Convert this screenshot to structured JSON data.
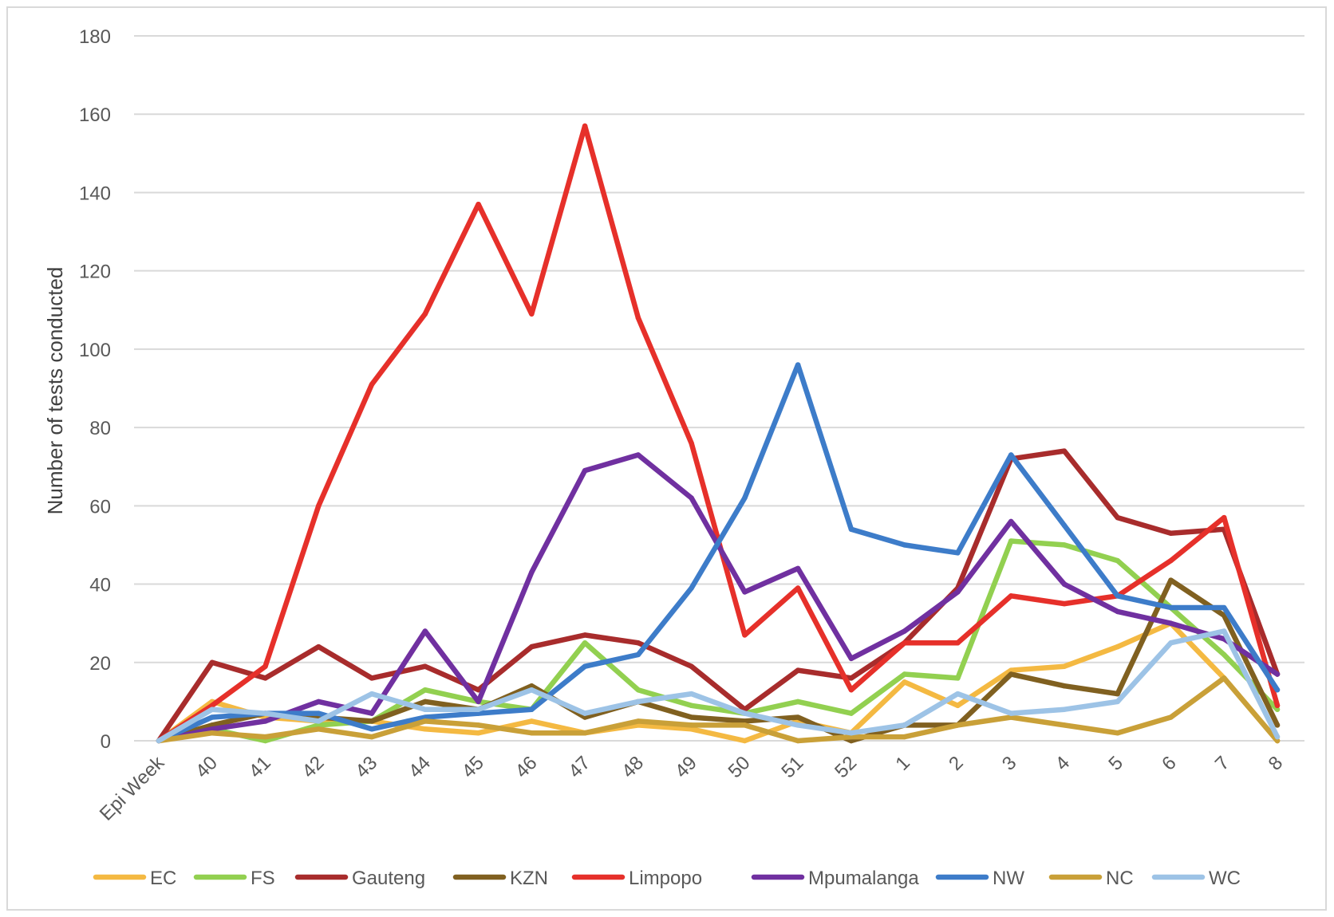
{
  "chart_data": {
    "type": "line",
    "title": "",
    "xlabel": "",
    "ylabel": "Number of tests conducted",
    "ylim": [
      0,
      180
    ],
    "yticks": [
      0,
      20,
      40,
      60,
      80,
      100,
      120,
      140,
      160,
      180
    ],
    "grid": true,
    "legend_position": "bottom",
    "categories": [
      "Epi Week",
      "40",
      "41",
      "42",
      "43",
      "44",
      "45",
      "46",
      "47",
      "48",
      "49",
      "50",
      "51",
      "52",
      "1",
      "2",
      "3",
      "4",
      "5",
      "6",
      "7",
      "8"
    ],
    "series": [
      {
        "name": "EC",
        "color": "#f4b942",
        "values": [
          0,
          10,
          6,
          5,
          5,
          3,
          2,
          5,
          2,
          4,
          3,
          0,
          5,
          2,
          15,
          9,
          18,
          19,
          24,
          30,
          16,
          0
        ]
      },
      {
        "name": "FS",
        "color": "#92d050",
        "values": [
          0,
          3,
          0,
          4,
          5,
          13,
          10,
          8,
          25,
          13,
          9,
          7,
          10,
          7,
          17,
          16,
          51,
          50,
          46,
          34,
          22,
          8
        ]
      },
      {
        "name": "Gauteng",
        "color": "#a82c2c",
        "values": [
          0,
          20,
          16,
          24,
          16,
          19,
          13,
          24,
          27,
          25,
          19,
          8,
          18,
          16,
          25,
          39,
          72,
          74,
          57,
          53,
          54,
          17
        ]
      },
      {
        "name": "KZN",
        "color": "#806020",
        "values": [
          0,
          4,
          7,
          6,
          5,
          10,
          8,
          14,
          6,
          10,
          6,
          5,
          6,
          0,
          4,
          4,
          17,
          14,
          12,
          41,
          32,
          4
        ]
      },
      {
        "name": "Limpopo",
        "color": "#e6302a",
        "values": [
          0,
          9,
          19,
          60,
          91,
          109,
          137,
          109,
          157,
          108,
          76,
          27,
          39,
          13,
          25,
          25,
          37,
          35,
          37,
          46,
          57,
          9
        ]
      },
      {
        "name": "Mpumalanga",
        "color": "#7030a0",
        "values": [
          0,
          3,
          5,
          10,
          7,
          28,
          10,
          43,
          69,
          73,
          62,
          38,
          44,
          21,
          28,
          38,
          56,
          40,
          33,
          30,
          26,
          17
        ]
      },
      {
        "name": "NW",
        "color": "#3d7cc9",
        "values": [
          0,
          6,
          7,
          7,
          3,
          6,
          7,
          8,
          19,
          22,
          39,
          62,
          96,
          54,
          50,
          48,
          73,
          55,
          37,
          34,
          34,
          13
        ]
      },
      {
        "name": "NC",
        "color": "#c9a038",
        "values": [
          0,
          2,
          1,
          3,
          1,
          5,
          4,
          2,
          2,
          5,
          4,
          4,
          0,
          1,
          1,
          4,
          6,
          4,
          2,
          6,
          16,
          0
        ]
      },
      {
        "name": "WC",
        "color": "#9dc3e6",
        "values": [
          0,
          8,
          7,
          5,
          12,
          8,
          8,
          13,
          7,
          10,
          12,
          7,
          4,
          2,
          4,
          12,
          7,
          8,
          10,
          25,
          28,
          1
        ]
      }
    ]
  }
}
